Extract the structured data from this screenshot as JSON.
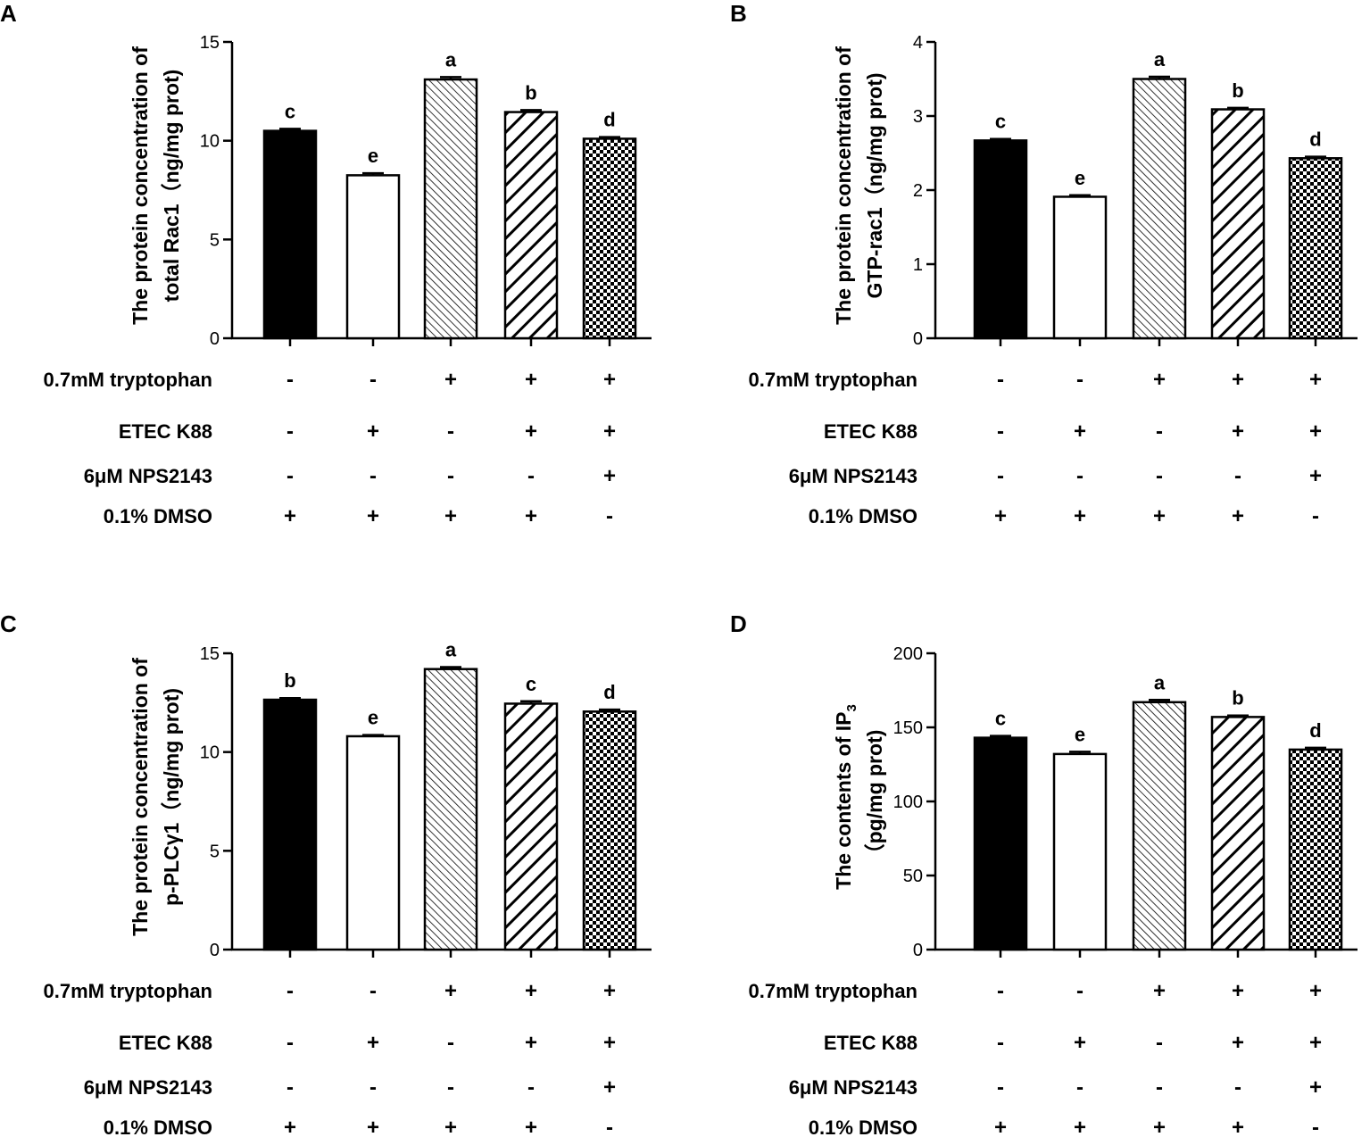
{
  "chart_data": [
    {
      "panel_label": "A",
      "type": "bar",
      "ylabel_lines": [
        "The protein concentration of",
        "total Rac1（ng/mg prot)"
      ],
      "ylim": [
        0,
        15
      ],
      "yticks": [
        0,
        5,
        10,
        15
      ],
      "ytick_labels": [
        "0",
        "5",
        "10",
        "15"
      ],
      "values": [
        10.5,
        8.25,
        13.1,
        11.45,
        10.1
      ],
      "errors": [
        0.1,
        0.1,
        0.12,
        0.1,
        0.08
      ],
      "significance": [
        "c",
        "e",
        "a",
        "b",
        "d"
      ]
    },
    {
      "panel_label": "B",
      "type": "bar",
      "ylabel_lines": [
        "The protein concentration of",
        "GTP-rac1（ng/mg prot)"
      ],
      "ylim": [
        0,
        4
      ],
      "yticks": [
        0,
        1,
        2,
        3,
        4
      ],
      "ytick_labels": [
        "0",
        "1",
        "2",
        "3",
        "4"
      ],
      "values": [
        2.67,
        1.91,
        3.5,
        3.09,
        2.43
      ],
      "errors": [
        0.02,
        0.02,
        0.03,
        0.02,
        0.02
      ],
      "significance": [
        "c",
        "e",
        "a",
        "b",
        "d"
      ]
    },
    {
      "panel_label": "C",
      "type": "bar",
      "ylabel_lines": [
        "The protein concentration of",
        "p-PLCγ1（ng/mg prot)"
      ],
      "ylim": [
        0,
        15
      ],
      "yticks": [
        0,
        5,
        10,
        15
      ],
      "ytick_labels": [
        "0",
        "5",
        "10",
        "15"
      ],
      "values": [
        12.65,
        10.8,
        14.2,
        12.45,
        12.05
      ],
      "errors": [
        0.08,
        0.06,
        0.1,
        0.12,
        0.1
      ],
      "significance": [
        "b",
        "e",
        "a",
        "c",
        "d"
      ]
    },
    {
      "panel_label": "D",
      "type": "bar",
      "ylabel_lines": [
        "The contents of IP",
        "（pg/mg prot)"
      ],
      "ylabel_subscript": "3",
      "ylim": [
        0,
        200
      ],
      "yticks": [
        0,
        50,
        100,
        150,
        200
      ],
      "ytick_labels": [
        "0",
        "50",
        "100",
        "150",
        "200"
      ],
      "values": [
        143,
        132,
        167,
        157,
        135
      ],
      "errors": [
        1.2,
        1.5,
        1.5,
        1.0,
        1.2
      ],
      "significance": [
        "c",
        "e",
        "a",
        "b",
        "d"
      ]
    }
  ],
  "treatment_table": {
    "rows": [
      {
        "label": "0.7mM tryptophan",
        "signs": [
          "-",
          "-",
          "+",
          "+",
          "+"
        ]
      },
      {
        "label": "ETEC K88",
        "signs": [
          "-",
          "+",
          "-",
          "+",
          "+"
        ]
      },
      {
        "label": "6μM NPS2143",
        "signs": [
          "-",
          "-",
          "-",
          "-",
          "+"
        ]
      },
      {
        "label": "0.1% DMSO",
        "signs": [
          "+",
          "+",
          "+",
          "+",
          "-"
        ]
      }
    ]
  },
  "bar_patterns": [
    "solid",
    "white",
    "hatch-fine",
    "hatch-thick",
    "checker"
  ],
  "colors": {
    "ink": "#000000",
    "fill_light": "#ffffff"
  }
}
